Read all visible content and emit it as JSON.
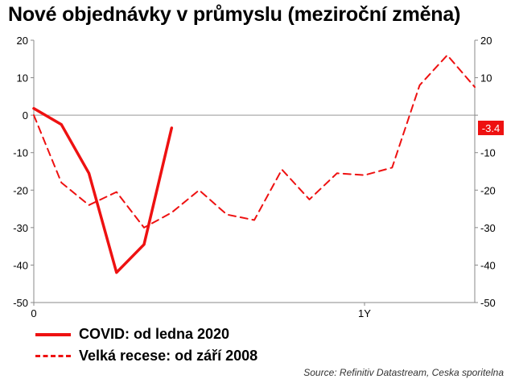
{
  "chart_data": {
    "type": "line",
    "title": "Nové objednávky v průmyslu (meziroční změna)",
    "ylim": [
      -50,
      20
    ],
    "yticks": [
      20,
      10,
      0,
      -10,
      -20,
      -30,
      -40,
      -50
    ],
    "xlim": [
      0,
      16
    ],
    "xticks": [
      {
        "x": 0,
        "label": "0"
      },
      {
        "x": 12,
        "label": "1Y"
      }
    ],
    "grid": false,
    "series": [
      {
        "name": "COVID: od ledna 2020",
        "style": "solid",
        "color": "#ee1111",
        "x": [
          0,
          1,
          2,
          3,
          4,
          5
        ],
        "values": [
          1.8,
          -2.5,
          -15.5,
          -42,
          -34.5,
          -3.4
        ]
      },
      {
        "name": "Velká recese: od září 2008",
        "style": "dashed",
        "color": "#ee1111",
        "x": [
          0,
          1,
          2,
          3,
          4,
          5,
          6,
          7,
          8,
          9,
          10,
          11,
          12,
          13,
          14,
          15,
          16
        ],
        "values": [
          0,
          -18,
          -24,
          -20.5,
          -30,
          -26,
          -20,
          -26.5,
          -28,
          -14.5,
          -22.5,
          -15.5,
          -16,
          -14,
          8,
          16,
          7.5
        ]
      }
    ],
    "last_value_label": "-3.4",
    "legend_position": "bottom-left",
    "source": "Source: Refinitiv Datastream, Ceska sporitelna"
  }
}
